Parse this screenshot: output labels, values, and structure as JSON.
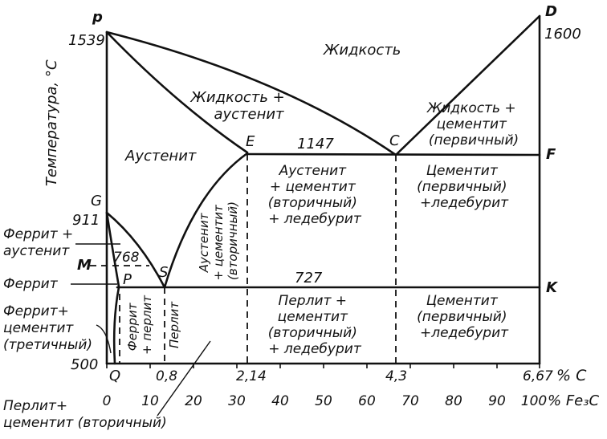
{
  "axis": {
    "y_title": "Температура, °С",
    "x_unit_c": "% С",
    "x_unit_fe3c": "% Fe₃C",
    "ticks_fe3c": [
      "0",
      "10",
      "20",
      "30",
      "40",
      "50",
      "60",
      "70",
      "80",
      "90",
      "100"
    ],
    "ticks_c": [
      "0,8",
      "2,14",
      "4,3",
      "6,67"
    ]
  },
  "points": {
    "p_upper": "p",
    "D": "D",
    "G": "G",
    "M": "M",
    "P": "P",
    "S": "S",
    "E": "E",
    "C": "C",
    "F": "F",
    "K": "K",
    "Q": "Q"
  },
  "temperatures": {
    "t1539": "1539",
    "t1600": "1600",
    "t911": "911",
    "t768": "768",
    "t500": "500",
    "t1147": "1147",
    "t727": "727"
  },
  "regions": {
    "liquid": "Жидкость",
    "liquid_austenite": [
      "Жидкость +",
      "аустенит"
    ],
    "liquid_cementite": [
      "Жидкость +",
      "цементит",
      "(первичный)"
    ],
    "austenite": "Аустенит",
    "aust_cem_led": [
      "Аустенит",
      "+ цементит",
      "(вторичный)",
      "+ ледебурит"
    ],
    "cem_led_upper": [
      "Цементит",
      "(первичный)",
      "+ледебурит"
    ],
    "aust_cem_vertical": [
      "Аустенит",
      "+ цементит",
      "(вторичный)"
    ],
    "ferrite_austenite": [
      "Феррит +",
      "аустенит"
    ],
    "ferrite": "Феррит",
    "ferrite_cementite": [
      "Феррит+",
      "цементит",
      "(третичный)"
    ],
    "ferrite_pearlite_vertical": [
      "Феррит",
      "+ перлит"
    ],
    "pearlite_vertical": "Перлит",
    "pearl_cem_led": [
      "Перлит +",
      "цементит",
      "(вторичный)",
      "+ ледебурит"
    ],
    "cem_led_lower": [
      "Цементит",
      "(первичный)",
      "+ледебурит"
    ],
    "pearlite_cementite": [
      "Перлит+",
      "цементит (вторичный)"
    ]
  }
}
